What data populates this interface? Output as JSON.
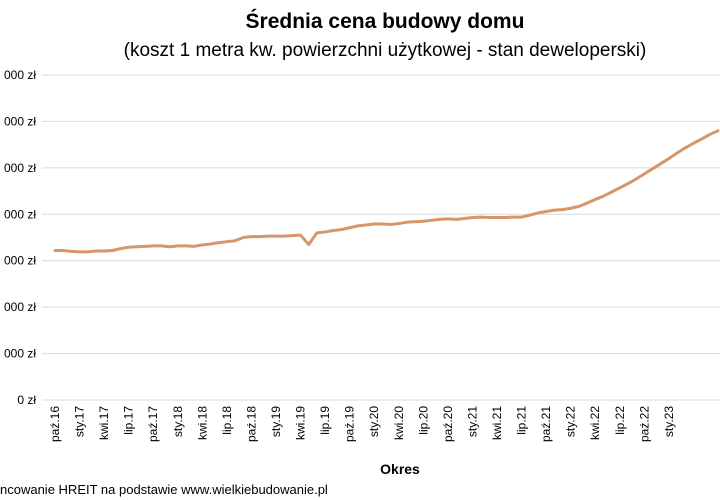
{
  "chart_data": {
    "type": "line",
    "title": "Średnia cena budowy domu",
    "subtitle": "(koszt 1 metra kw. powierzchni użytkowej - stan deweloperski)",
    "xlabel": "Okres",
    "ylabel": "",
    "source": "ncowanie HREIT na podstawie www.wielkiebudowanie.pl",
    "y_tick_labels": [
      "0 zł",
      "000 zł",
      "000 zł",
      "000 zł",
      "000 zł",
      "000 zł",
      "000 zł",
      "000 zł"
    ],
    "ylim": [
      0,
      7
    ],
    "grid": true,
    "x_tick_labels": [
      "paź.16",
      "sty.17",
      "kwi.17",
      "lip.17",
      "paź.17",
      "sty.18",
      "kwi.18",
      "lip.18",
      "paź.18",
      "sty.19",
      "kwi.19",
      "lip.19",
      "paź.19",
      "sty.20",
      "kwi.20",
      "lip.20",
      "paź.20",
      "sty.21",
      "kwi.21",
      "lip.21",
      "paź.21",
      "sty.22",
      "kwi.22",
      "lip.22",
      "paź.22",
      "sty.23"
    ],
    "line_color": "#d6966a",
    "series": [
      {
        "values": [
          3.22,
          3.22,
          3.2,
          3.19,
          3.19,
          3.21,
          3.21,
          3.22,
          3.26,
          3.29,
          3.3,
          3.31,
          3.32,
          3.32,
          3.3,
          3.32,
          3.32,
          3.31,
          3.34,
          3.36,
          3.39,
          3.41,
          3.43,
          3.5,
          3.52,
          3.52,
          3.53,
          3.53,
          3.53,
          3.54,
          3.55,
          3.35,
          3.6,
          3.62,
          3.65,
          3.67,
          3.71,
          3.75,
          3.77,
          3.79,
          3.79,
          3.78,
          3.8,
          3.83,
          3.84,
          3.85,
          3.87,
          3.89,
          3.9,
          3.89,
          3.91,
          3.93,
          3.94,
          3.93,
          3.93,
          3.93,
          3.94,
          3.94,
          3.98,
          4.03,
          4.06,
          4.09,
          4.1,
          4.13,
          4.17,
          4.24,
          4.32,
          4.39,
          4.48,
          4.57,
          4.66,
          4.76,
          4.87,
          4.98,
          5.09,
          5.2,
          5.32,
          5.43,
          5.53,
          5.62,
          5.72,
          5.8
        ]
      }
    ]
  }
}
